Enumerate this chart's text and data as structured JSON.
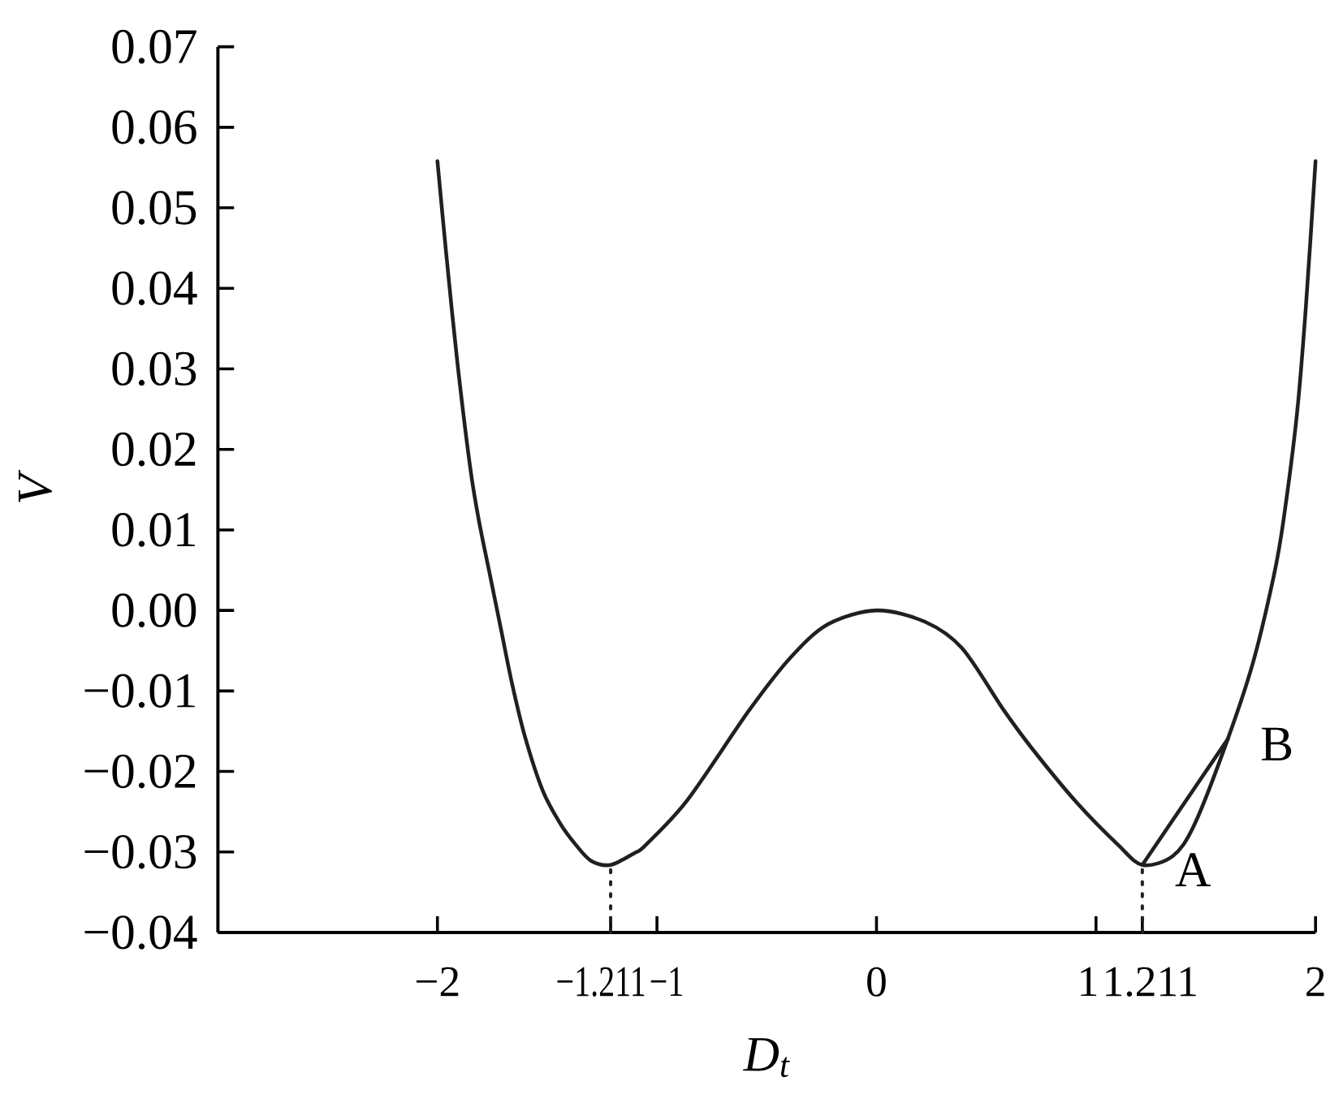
{
  "chart_data": {
    "type": "line",
    "xlabel": "D$_{t}$",
    "ylabel": "V",
    "xlim": [
      -3,
      2
    ],
    "ylim": [
      -0.04,
      0.07
    ],
    "xticks": [
      {
        "value": -2,
        "label": "−2"
      },
      {
        "value": -1.211,
        "label": "−1.211"
      },
      {
        "value": -1,
        "label": "−1"
      },
      0,
      1,
      1.211,
      2
    ],
    "yticks": [
      {
        "value": -0.04,
        "label": "−0.04"
      },
      {
        "value": -0.03,
        "label": "−0.03"
      },
      {
        "value": -0.02,
        "label": "−0.02"
      },
      {
        "value": -0.01,
        "label": "−0.01"
      },
      {
        "value": 0,
        "label": "0.00"
      },
      0.01,
      0.02,
      0.03,
      0.04,
      0.05,
      0.06,
      0.07
    ],
    "annotations": [
      {
        "text": "A",
        "x": 1.211,
        "y": -0.0316
      },
      {
        "text": "B",
        "x": 1.6,
        "y": -0.016
      }
    ],
    "series": [
      {
        "color": "#231f20",
        "line_style": "solid",
        "x": [
          -2.0,
          -1.96,
          -1.91,
          -1.85,
          -1.81,
          -1.76,
          -1.71,
          -1.66,
          -1.6,
          -1.52,
          -1.44,
          -1.37,
          -1.3,
          -1.211,
          -1.1,
          -1.05,
          -0.86,
          -0.58,
          -0.39,
          -0.22,
          0,
          0.22,
          0.39,
          0.58,
          0.71,
          0.91,
          1.1,
          1.211,
          1.35,
          1.45,
          1.6,
          1.716,
          1.81,
          1.853,
          1.915,
          1.956,
          2.0
        ],
        "values": [
          0.0558,
          0.0443,
          0.031,
          0.0176,
          0.011,
          0.0043,
          -0.0024,
          -0.0091,
          -0.0158,
          -0.0224,
          -0.0265,
          -0.0291,
          -0.0311,
          -0.0316,
          -0.0301,
          -0.0291,
          -0.0235,
          -0.0124,
          -0.0058,
          -0.0017,
          0,
          -0.0014,
          -0.0047,
          -0.0124,
          -0.0172,
          -0.0238,
          -0.0291,
          -0.0316,
          -0.0305,
          -0.0265,
          -0.016,
          -0.0064,
          0.0043,
          0.011,
          0.0243,
          0.0377,
          0.0558
        ]
      },
      {
        "color": "#231f20",
        "line_style": "solid",
        "x": [
          1.211,
          1.6
        ],
        "values": [
          -0.0316,
          -0.016
        ]
      },
      {
        "color": "#231f20",
        "line_style": "dotted",
        "x": [
          -1.211,
          -1.211
        ],
        "values": [
          -0.04,
          -0.0316
        ]
      },
      {
        "color": "#231f20",
        "line_style": "dotted",
        "x": [
          1.211,
          1.211
        ],
        "values": [
          -0.04,
          -0.0316
        ]
      }
    ]
  }
}
